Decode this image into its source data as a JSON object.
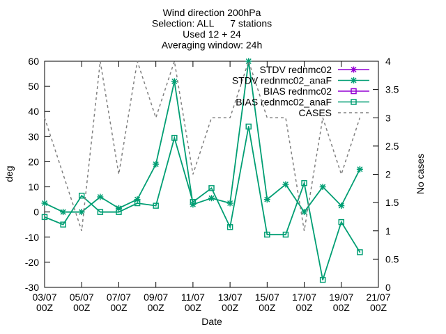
{
  "chart_data": {
    "type": "line",
    "title": [
      "Wind direction 200hPa",
      "Selection: ALL      7 stations",
      "Used 12 + 24",
      "Averaging window: 24h"
    ],
    "x_label": "Date",
    "y_label": "deg",
    "y2_label": "No cases",
    "x": [
      3,
      4,
      5,
      6,
      7,
      8,
      9,
      10,
      11,
      12,
      13,
      14,
      15,
      16,
      17,
      18,
      19,
      20
    ],
    "xlim": [
      3,
      21
    ],
    "xticks": [
      {
        "value": 3,
        "label": "03/07 00Z"
      },
      {
        "value": 5,
        "label": "05/07 00Z"
      },
      {
        "value": 7,
        "label": "07/07 00Z"
      },
      {
        "value": 9,
        "label": "09/07 00Z"
      },
      {
        "value": 11,
        "label": "11/07 00Z"
      },
      {
        "value": 13,
        "label": "13/07 00Z"
      },
      {
        "value": 15,
        "label": "15/07 00Z"
      },
      {
        "value": 17,
        "label": "17/07 00Z"
      },
      {
        "value": 19,
        "label": "19/07 00Z"
      },
      {
        "value": 21,
        "label": "21/07 00Z"
      }
    ],
    "ylim": [
      -30,
      60
    ],
    "yticks": [
      -30,
      -20,
      -10,
      0,
      10,
      20,
      30,
      40,
      50,
      60
    ],
    "y2lim": [
      0,
      4
    ],
    "y2ticks": [
      0,
      0.5,
      1,
      1.5,
      2,
      2.5,
      3,
      3.5,
      4
    ],
    "legend": "top-right",
    "series": [
      {
        "name": "STDV rednmc02",
        "color": "#9400d3",
        "marker": "star",
        "values": [
          null,
          null,
          null,
          null,
          null,
          null,
          null,
          null,
          null,
          null,
          null,
          null,
          null,
          null,
          null,
          null,
          null,
          null
        ]
      },
      {
        "name": "STDV rednmc02_anaF",
        "color": "#009e73",
        "marker": "star",
        "values": [
          3.5,
          0,
          0,
          6,
          1.5,
          5,
          19,
          52,
          3,
          5.5,
          3.5,
          60,
          5,
          11,
          0,
          10,
          2.5,
          17
        ]
      },
      {
        "name": "BIAS rednmc02",
        "color": "#9400d3",
        "marker": "square",
        "values": [
          null,
          null,
          null,
          null,
          null,
          null,
          null,
          null,
          null,
          null,
          null,
          null,
          null,
          null,
          null,
          null,
          null,
          null
        ]
      },
      {
        "name": "BIAS rednmc02_anaF",
        "color": "#009e73",
        "marker": "square",
        "values": [
          -2,
          -5,
          6.5,
          0,
          0,
          3.5,
          2.5,
          29.5,
          4,
          9.5,
          -6,
          34,
          -9,
          -9,
          11.5,
          -27,
          -4,
          -16
        ]
      },
      {
        "name": "CASES",
        "color": "#808080",
        "marker": "dash",
        "axis": "y2",
        "values": [
          3,
          2,
          1,
          4,
          2,
          4,
          3,
          4,
          2,
          3,
          3,
          4,
          3,
          3,
          1,
          3,
          2,
          3
        ]
      }
    ]
  }
}
